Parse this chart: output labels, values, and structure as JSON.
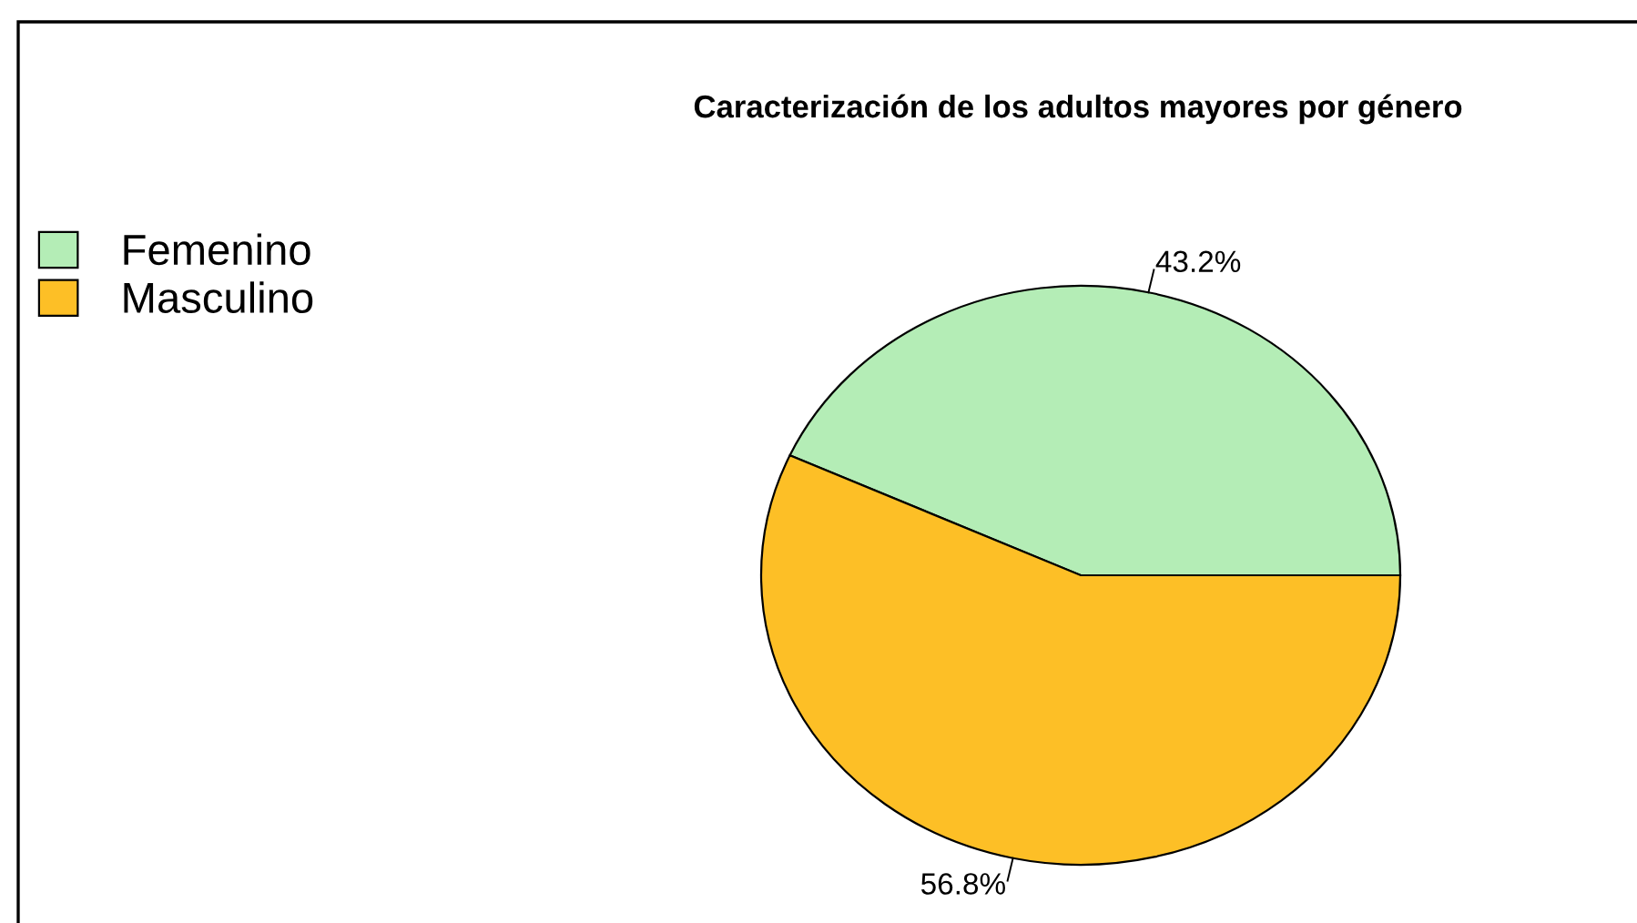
{
  "chart_data": {
    "type": "pie",
    "title": "Caracterización de los adultos mayores por género",
    "categories": [
      "Femenino",
      "Masculino"
    ],
    "values": [
      43.2,
      56.8
    ],
    "value_labels": [
      "43.2%",
      "56.8%"
    ],
    "colors": [
      "#b4edb6",
      "#fdbf26"
    ],
    "legend": "top left"
  }
}
